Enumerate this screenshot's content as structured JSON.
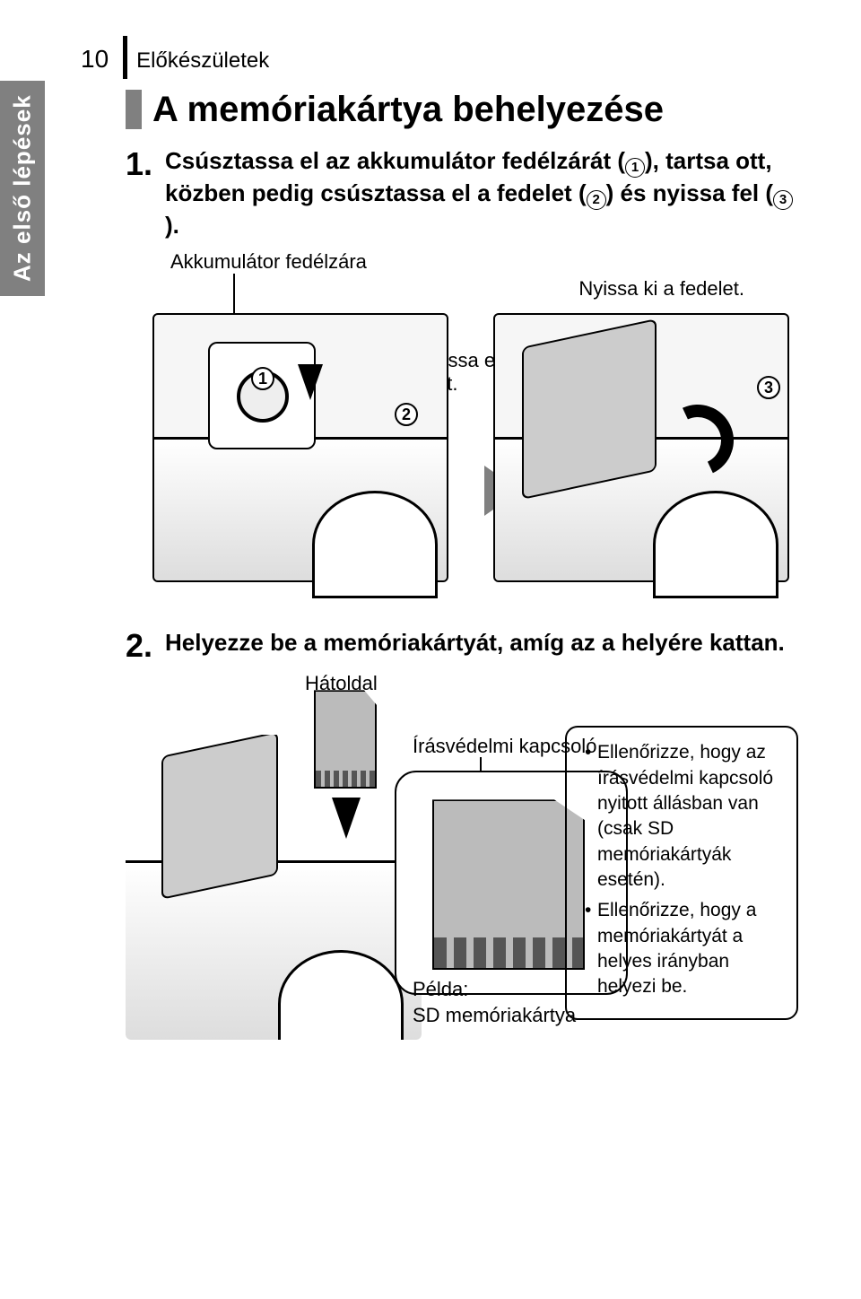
{
  "page_number": "10",
  "section_name": "Előkészületek",
  "side_tab": "Az első lépések",
  "title": "A memóriakártya behelyezése",
  "step1": {
    "num": "1.",
    "text_parts": [
      "Csúsztassa el az akkumulátor fedélzárát (",
      "), tartsa ott, közben pedig csúsztassa el a fedelet (",
      ") és nyissa fel (",
      ")."
    ],
    "c1": "1",
    "c2": "2",
    "c3": "3"
  },
  "fig1": {
    "battery_latch_label": "Akkumulátor fedélzára",
    "open_cover_label": "Nyissa ki a fedelet.",
    "slide_cover_label": "Csúsztassa el a fedelet.",
    "circle1": "1",
    "circle2": "2",
    "circle3": "3"
  },
  "step2": {
    "num": "2.",
    "text": "Helyezze be a memóriakártyát, amíg az a helyére kattan."
  },
  "fig2": {
    "back_label": "Hátoldal",
    "write_protect_label": "Írásvédelmi kapcsoló",
    "example_label_l1": "Példa:",
    "example_label_l2": "SD memóriakártya"
  },
  "notebox": {
    "item1": "Ellenőrizze, hogy az írásvédelmi kapcsoló nyitott állásban van (csak SD memóriakártyák esetén).",
    "item2": "Ellenőrizze, hogy a memóriakártyát a helyes irányban helyezi be."
  },
  "colors": {
    "side_tab_bg": "#808080",
    "title_bar": "#808080",
    "triangle": "#808080"
  }
}
